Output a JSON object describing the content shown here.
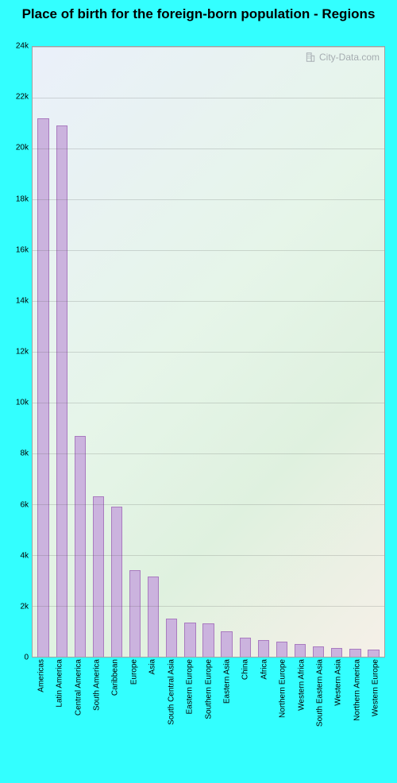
{
  "title": "Place of birth for the foreign-born population - Regions",
  "title_fontsize": 17,
  "watermark": "City-Data.com",
  "watermark_fontsize": 12,
  "chart": {
    "type": "bar",
    "ylim": [
      0,
      24000
    ],
    "yticks": [
      0,
      2000,
      4000,
      6000,
      8000,
      10000,
      12000,
      14000,
      16000,
      18000,
      20000,
      22000,
      24000
    ],
    "ytick_labels": [
      "0",
      "2k",
      "4k",
      "6k",
      "8k",
      "10k",
      "12k",
      "14k",
      "16k",
      "18k",
      "20k",
      "22k",
      "24k"
    ],
    "tick_fontsize": 10,
    "x_label_fontsize": 10,
    "categories": [
      "Americas",
      "Latin America",
      "Central America",
      "South America",
      "Caribbean",
      "Europe",
      "Asia",
      "South Central Asia",
      "Eastern Europe",
      "Southern Europe",
      "Eastern Asia",
      "China",
      "Africa",
      "Northern Europe",
      "Western Africa",
      "South Eastern Asia",
      "Western Asia",
      "Northern America",
      "Western Europe"
    ],
    "values": [
      21200,
      20900,
      8700,
      6300,
      5900,
      3400,
      3150,
      1500,
      1350,
      1300,
      1000,
      750,
      650,
      600,
      500,
      400,
      350,
      320,
      280
    ],
    "bar_fill": "#cbb3de",
    "bar_border": "#a97bbf",
    "bar_width": 0.62,
    "grid_color": "rgba(80,80,80,0.20)",
    "background_css": "linear-gradient(135deg, #eaf0fa 0%, #e6f5e9 45%, #dff1df 70%, #f6f0e8 100%)",
    "axis_line_color": "#a0a0a0",
    "outer_background": "#33ffff"
  }
}
